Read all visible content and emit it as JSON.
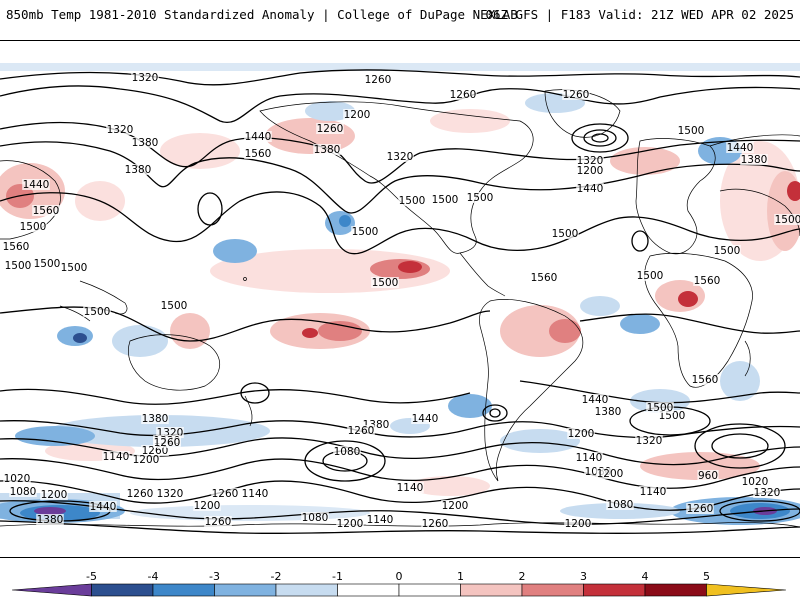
{
  "header": {
    "title_left": "850mb Temp 1981-2010 Standardized Anomaly | College of DuPage NEXLAB",
    "title_right": "06Z GFS | F183 Valid: 21Z WED APR 02 2025"
  },
  "colorbar": {
    "tick_labels": [
      "-5",
      "-4",
      "-3",
      "-2",
      "-1",
      "0",
      "1",
      "2",
      "3",
      "4",
      "5"
    ],
    "colors": [
      "#6a3d9a",
      "#2c4f8f",
      "#3d87c9",
      "#7fb2e0",
      "#c7dcf0",
      "#ffffff",
      "#ffffff",
      "#f4c4c0",
      "#e08080",
      "#c4303a",
      "#8b0c18",
      "#f0c020"
    ]
  },
  "contour_labels": [
    {
      "text": "1320"
    },
    {
      "text": "1260"
    },
    {
      "text": "1260"
    },
    {
      "text": "1260"
    },
    {
      "text": "1200"
    },
    {
      "text": "1260"
    },
    {
      "text": "1320"
    },
    {
      "text": "1380"
    },
    {
      "text": "1440"
    },
    {
      "text": "1380"
    },
    {
      "text": "1560"
    },
    {
      "text": "1320"
    },
    {
      "text": "1380"
    },
    {
      "text": "1200"
    },
    {
      "text": "1320"
    },
    {
      "text": "1440"
    },
    {
      "text": "1500"
    },
    {
      "text": "1440"
    },
    {
      "text": "1380"
    },
    {
      "text": "1440"
    },
    {
      "text": "1560"
    },
    {
      "text": "1500"
    },
    {
      "text": "1560"
    },
    {
      "text": "1500"
    },
    {
      "text": "1500"
    },
    {
      "text": "1500"
    },
    {
      "text": "1500"
    },
    {
      "text": "1500"
    },
    {
      "text": "1500"
    },
    {
      "text": "1500"
    },
    {
      "text": "1500"
    },
    {
      "text": "1500"
    },
    {
      "text": "1500"
    },
    {
      "text": "1560"
    },
    {
      "text": "1500"
    },
    {
      "text": "1500"
    },
    {
      "text": "1560"
    },
    {
      "text": "1500"
    },
    {
      "text": "1500"
    },
    {
      "text": "1440"
    },
    {
      "text": "1380"
    },
    {
      "text": "1440"
    },
    {
      "text": "1380"
    },
    {
      "text": "1500"
    },
    {
      "text": "1320"
    },
    {
      "text": "1500"
    },
    {
      "text": "1560"
    },
    {
      "text": "1380"
    },
    {
      "text": "1320"
    },
    {
      "text": "1260"
    },
    {
      "text": "1320"
    },
    {
      "text": "1260"
    },
    {
      "text": "1200"
    },
    {
      "text": "1140"
    },
    {
      "text": "1080"
    },
    {
      "text": "1260"
    },
    {
      "text": "1200"
    },
    {
      "text": "1140"
    },
    {
      "text": "1080"
    },
    {
      "text": "960"
    },
    {
      "text": "1020"
    },
    {
      "text": "1320"
    },
    {
      "text": "1020"
    },
    {
      "text": "1080"
    },
    {
      "text": "1200"
    },
    {
      "text": "1440"
    },
    {
      "text": "1380"
    },
    {
      "text": "1260"
    },
    {
      "text": "1320"
    },
    {
      "text": "1260"
    },
    {
      "text": "1140"
    },
    {
      "text": "1200"
    },
    {
      "text": "1260"
    },
    {
      "text": "1080"
    },
    {
      "text": "1200"
    },
    {
      "text": "1140"
    },
    {
      "text": "1260"
    },
    {
      "text": "1200"
    },
    {
      "text": "1140"
    },
    {
      "text": "1200"
    },
    {
      "text": "1080"
    },
    {
      "text": "1260"
    },
    {
      "text": "1200"
    },
    {
      "text": "1140"
    }
  ]
}
